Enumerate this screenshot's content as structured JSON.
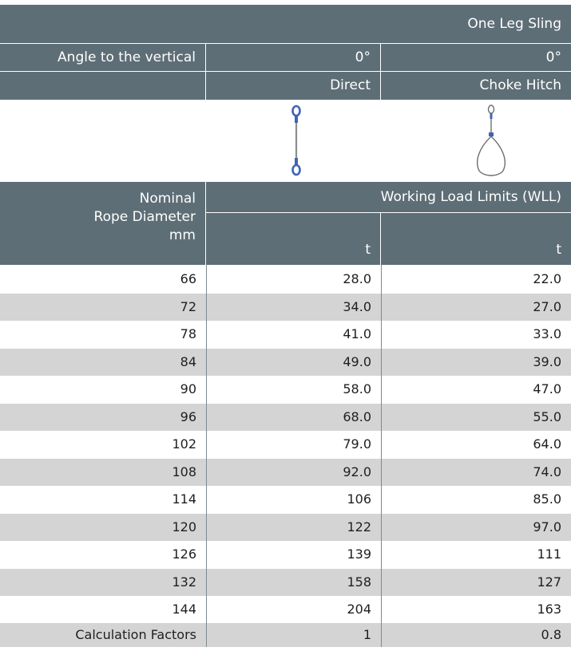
{
  "header": {
    "sling_type": "One Leg Sling",
    "angle_label": "Angle to the vertical",
    "angle_direct": "0°",
    "angle_choke": "0°",
    "method_direct": "Direct",
    "method_choke": "Choke Hitch"
  },
  "icons": {
    "direct": "direct-sling-icon",
    "choke": "choke-hitch-sling-icon"
  },
  "subheader": {
    "diameter_line1": "Nominal",
    "diameter_line2": "Rope Diameter",
    "diameter_unit": "mm",
    "wll_label": "Working Load Limits (WLL)",
    "unit_direct": "t",
    "unit_choke": "t"
  },
  "rows": [
    {
      "diameter": "66",
      "direct": "28.0",
      "choke": "22.0"
    },
    {
      "diameter": "72",
      "direct": "34.0",
      "choke": "27.0"
    },
    {
      "diameter": "78",
      "direct": "41.0",
      "choke": "33.0"
    },
    {
      "diameter": "84",
      "direct": "49.0",
      "choke": "39.0"
    },
    {
      "diameter": "90",
      "direct": "58.0",
      "choke": "47.0"
    },
    {
      "diameter": "96",
      "direct": "68.0",
      "choke": "55.0"
    },
    {
      "diameter": "102",
      "direct": "79.0",
      "choke": "64.0"
    },
    {
      "diameter": "108",
      "direct": "92.0",
      "choke": "74.0"
    },
    {
      "diameter": "114",
      "direct": "106",
      "choke": "85.0"
    },
    {
      "diameter": "120",
      "direct": "122",
      "choke": "97.0"
    },
    {
      "diameter": "126",
      "direct": "139",
      "choke": "111"
    },
    {
      "diameter": "132",
      "direct": "158",
      "choke": "127"
    },
    {
      "diameter": "144",
      "direct": "204",
      "choke": "163"
    }
  ],
  "factors": {
    "label": "Calculation Factors",
    "direct": "1",
    "choke": "0.8"
  },
  "colors": {
    "header_bg": "#5e6e76",
    "header_text": "#ffffff",
    "row_shade": "#d4d4d4",
    "icon_accent": "#3f64b4"
  }
}
